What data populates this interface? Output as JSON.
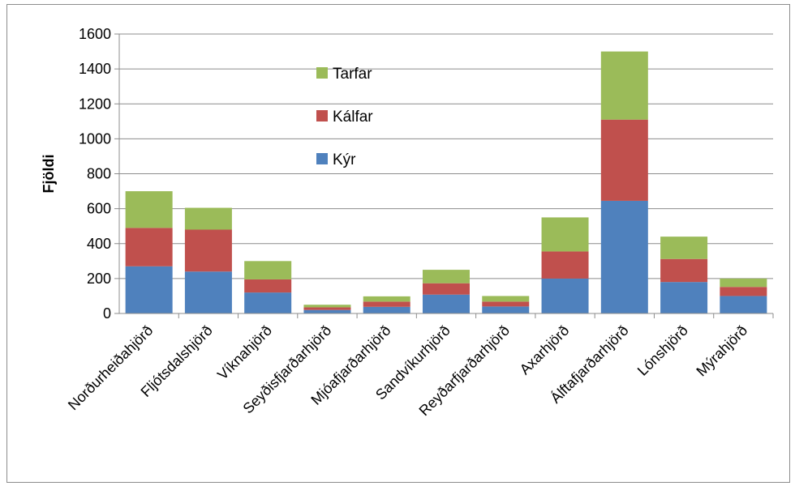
{
  "chart_data": {
    "type": "bar",
    "stacked": true,
    "ylabel": "Fjöldi",
    "ylim": [
      0,
      1600
    ],
    "yticks": [
      0,
      200,
      400,
      600,
      800,
      1000,
      1200,
      1400,
      1600
    ],
    "grid": true,
    "legend_position": "inside-top-center",
    "categories": [
      "Norðurheiðahjörð",
      "Fljótsdalshjörð",
      "Víknahjörð",
      "Seyðisfjarðarhjörð",
      "Mjóafjarðarhjörð",
      "Sandvíkurhjörð",
      "Reyðarfjarðarhjörð",
      "Axarhjörð",
      "Álftafjarðarhjörð",
      "Lónshjörð",
      "Mýrahjörð"
    ],
    "series": [
      {
        "name": "Kýr",
        "color": "#4f81bd",
        "values": [
          270,
          240,
          120,
          20,
          38,
          108,
          40,
          200,
          645,
          180,
          100
        ]
      },
      {
        "name": "Kálfar",
        "color": "#c0504d",
        "values": [
          220,
          240,
          75,
          15,
          30,
          65,
          28,
          155,
          465,
          132,
          52
        ]
      },
      {
        "name": "Tarfar",
        "color": "#9bbb59",
        "values": [
          210,
          125,
          105,
          15,
          30,
          77,
          32,
          195,
          390,
          128,
          48
        ]
      }
    ]
  }
}
